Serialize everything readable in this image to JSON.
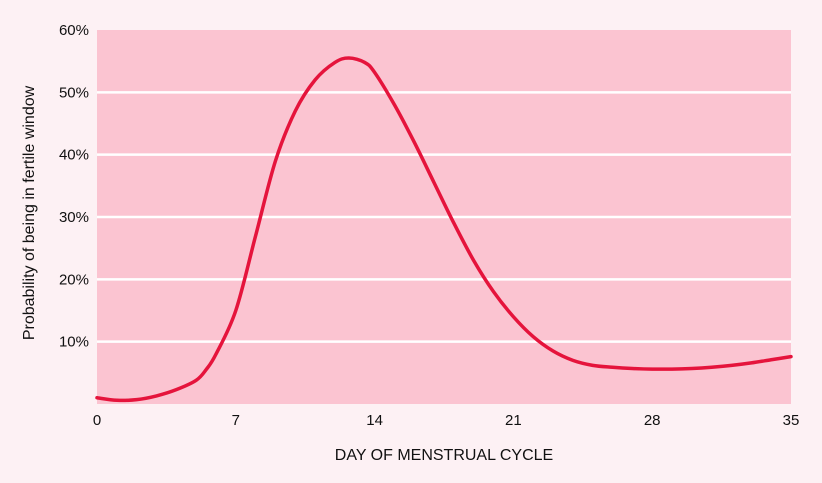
{
  "chart_data": {
    "type": "line",
    "title": "",
    "xlabel": "DAY OF MENSTRUAL CYCLE",
    "ylabel": "Probability of being in fertile window",
    "xlim": [
      0,
      35
    ],
    "ylim": [
      0,
      60
    ],
    "x_ticks": [
      0,
      7,
      14,
      21,
      28,
      35
    ],
    "x_tick_labels": [
      "0",
      "7",
      "14",
      "21",
      "28",
      "35"
    ],
    "y_ticks": [
      10,
      20,
      30,
      40,
      50,
      60
    ],
    "y_tick_labels": [
      "10%",
      "20%",
      "30%",
      "40%",
      "50%",
      "60%"
    ],
    "grid": "horizontal",
    "legend": "none",
    "series": [
      {
        "x": [
          0,
          1,
          2,
          3,
          4,
          5,
          5.5,
          6,
          7,
          8,
          9,
          10,
          11,
          12,
          12.7,
          13.5,
          14,
          15,
          16,
          17,
          18,
          19,
          20,
          21,
          22,
          23,
          24,
          25,
          26,
          27,
          28,
          29,
          30,
          31,
          32,
          33,
          34,
          35
        ],
        "values": [
          1.0,
          0.6,
          0.7,
          1.3,
          2.3,
          3.8,
          5.5,
          8.0,
          15.0,
          27.0,
          39.0,
          47.0,
          52.0,
          54.8,
          55.5,
          54.8,
          53.2,
          48.0,
          42.0,
          35.5,
          29.0,
          23.0,
          18.0,
          14.0,
          10.8,
          8.5,
          7.0,
          6.2,
          5.9,
          5.7,
          5.6,
          5.6,
          5.7,
          5.9,
          6.2,
          6.6,
          7.1,
          7.6
        ]
      }
    ],
    "colors": {
      "plot_background": "#fbc4d1",
      "gridline": "#ffffff",
      "line": "#e5143c",
      "text": "#111111"
    }
  }
}
